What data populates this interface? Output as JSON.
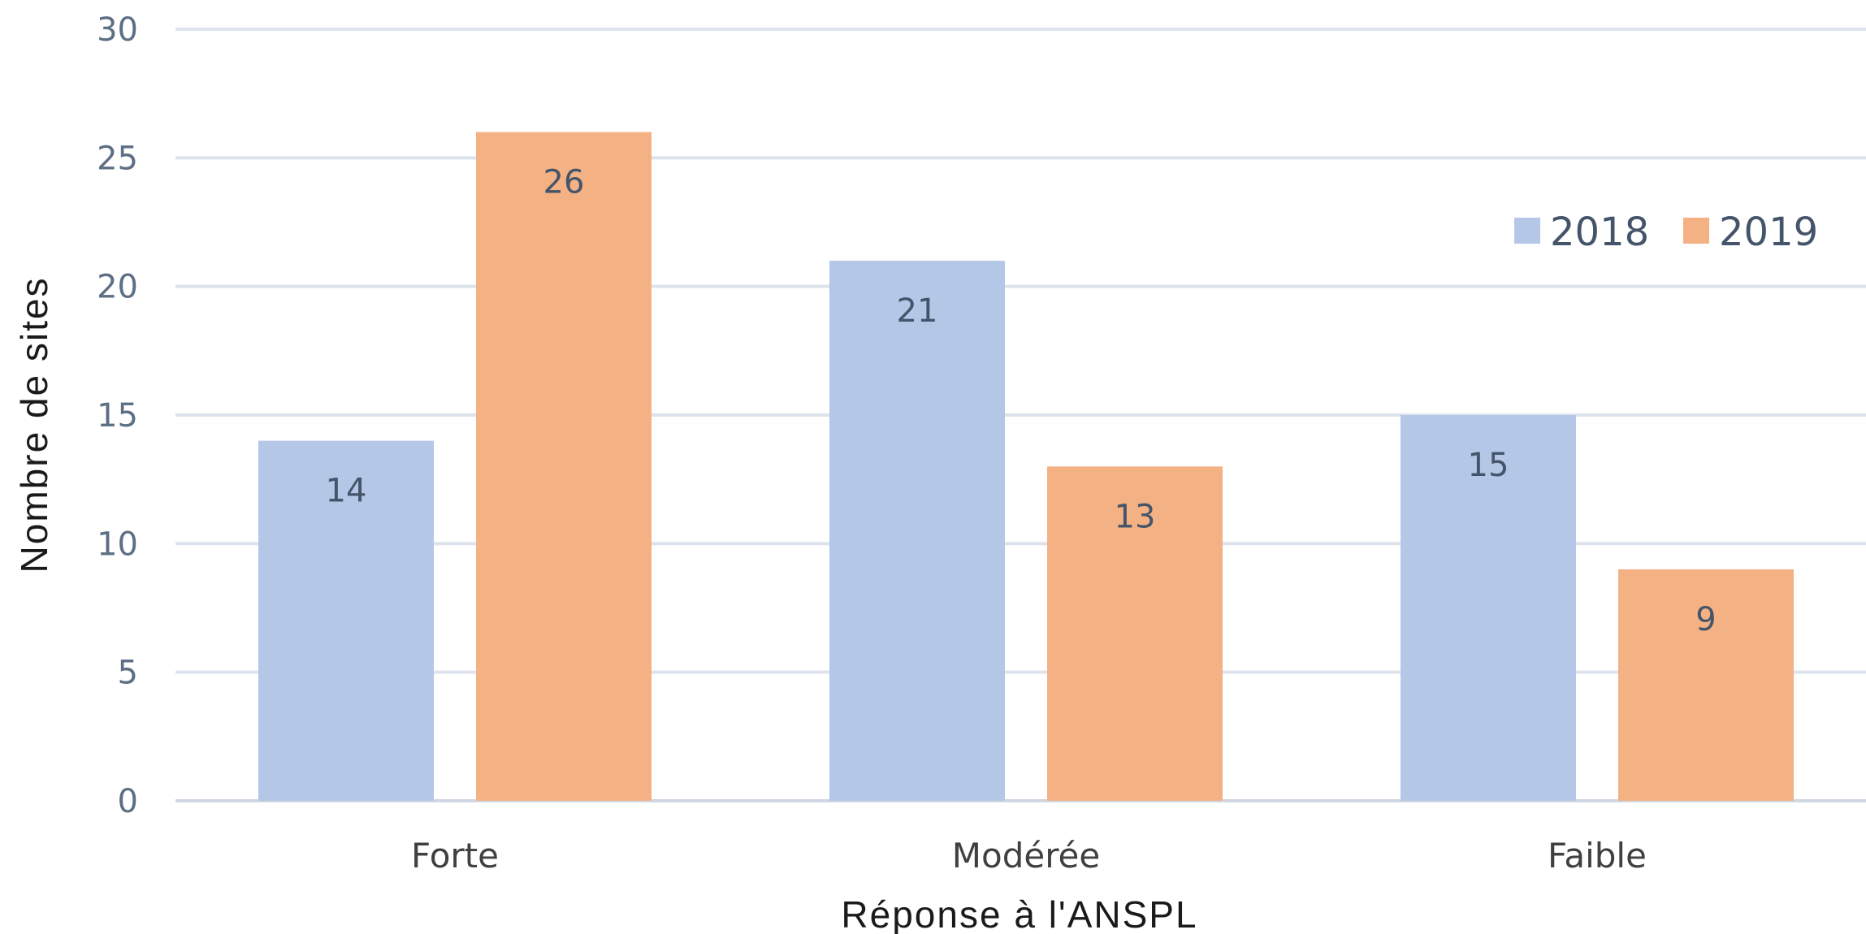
{
  "chart_data": {
    "type": "bar",
    "categories": [
      "Forte",
      "Modérée",
      "Faible"
    ],
    "series": [
      {
        "name": "2018",
        "values": [
          14,
          21,
          15
        ],
        "color": "#b4c7e7"
      },
      {
        "name": "2019",
        "values": [
          26,
          13,
          9
        ],
        "color": "#f4b183"
      }
    ],
    "xlabel": "Réponse à l'ANSPL",
    "ylabel": "Nombre de sites",
    "ylim": [
      0,
      30
    ],
    "yticks": [
      0,
      5,
      10,
      15,
      20,
      25,
      30
    ],
    "grid": true,
    "legend_position": "top-right",
    "data_labels": true
  }
}
